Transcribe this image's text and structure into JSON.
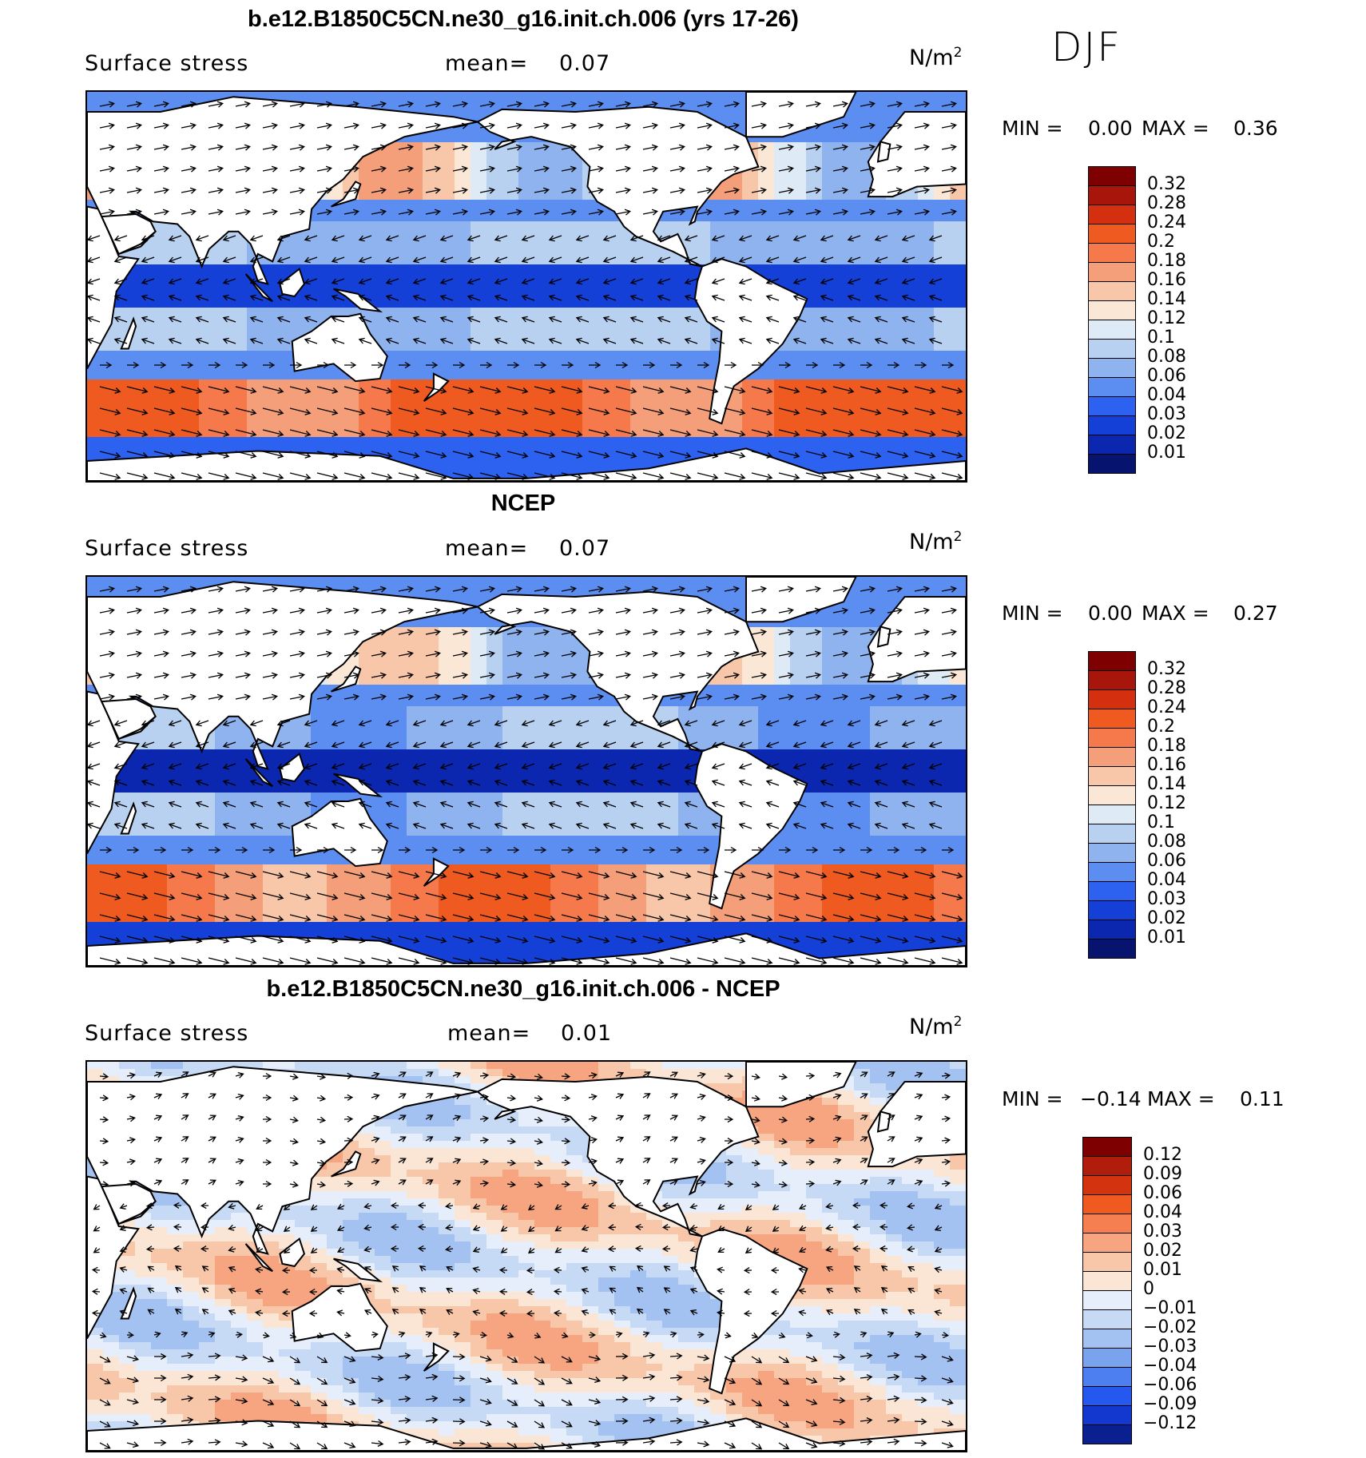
{
  "season": "DJF",
  "panels": [
    {
      "title": "b.e12.B1850C5CN.ne30_g16.init.ch.006 (yrs 17-26)",
      "variable": "Surface stress",
      "mean_label": "mean=",
      "mean_value": "0.07",
      "units": "N/m",
      "units_exp": "2",
      "min_label": "MIN =",
      "min_value": "0.00",
      "max_label": "MAX =",
      "max_value": "0.36",
      "scheme": "abs",
      "colorbar_labels": [
        "0.32",
        "0.28",
        "0.24",
        "0.2",
        "0.18",
        "0.16",
        "0.14",
        "0.12",
        "0.1",
        "0.08",
        "0.06",
        "0.04",
        "0.03",
        "0.02",
        "0.01"
      ]
    },
    {
      "title": "NCEP",
      "variable": "Surface stress",
      "mean_label": "mean=",
      "mean_value": "0.07",
      "units": "N/m",
      "units_exp": "2",
      "min_label": "MIN =",
      "min_value": "0.00",
      "max_label": "MAX =",
      "max_value": "0.27",
      "scheme": "abs",
      "colorbar_labels": [
        "0.32",
        "0.28",
        "0.24",
        "0.2",
        "0.18",
        "0.16",
        "0.14",
        "0.12",
        "0.1",
        "0.08",
        "0.06",
        "0.04",
        "0.03",
        "0.02",
        "0.01"
      ]
    },
    {
      "title": "b.e12.B1850C5CN.ne30_g16.init.ch.006 - NCEP",
      "variable": "Surface stress",
      "mean_label": "mean=",
      "mean_value": "0.01",
      "units": "N/m",
      "units_exp": "2",
      "min_label": "MIN =",
      "min_value": "−0.14",
      "max_label": "MAX =",
      "max_value": "0.11",
      "scheme": "diff",
      "colorbar_labels": [
        "0.12",
        "0.09",
        "0.06",
        "0.04",
        "0.03",
        "0.02",
        "0.01",
        "0",
        "−0.01",
        "−0.02",
        "−0.03",
        "−0.04",
        "−0.06",
        "−0.09",
        "−0.12"
      ]
    }
  ],
  "colors": {
    "abs_scale": [
      "#7f0000",
      "#a8160b",
      "#d4300f",
      "#ef5a20",
      "#f5794a",
      "#f59f7a",
      "#f8c6a8",
      "#fbe7d6",
      "#dfeaf7",
      "#b8d1f1",
      "#8fb3ee",
      "#5b8ef0",
      "#2d62f0",
      "#1440d8",
      "#0b27b0",
      "#061470"
    ],
    "diff_scale": [
      "#7f0000",
      "#b01d0b",
      "#d4330f",
      "#ef5a20",
      "#f57f50",
      "#f7a580",
      "#f8c7a9",
      "#fbe6d6",
      "#e6eefb",
      "#c7daf5",
      "#a3c1f1",
      "#7aa3ee",
      "#4d7ff0",
      "#2458ee",
      "#1238d0",
      "#0a2090"
    ]
  }
}
